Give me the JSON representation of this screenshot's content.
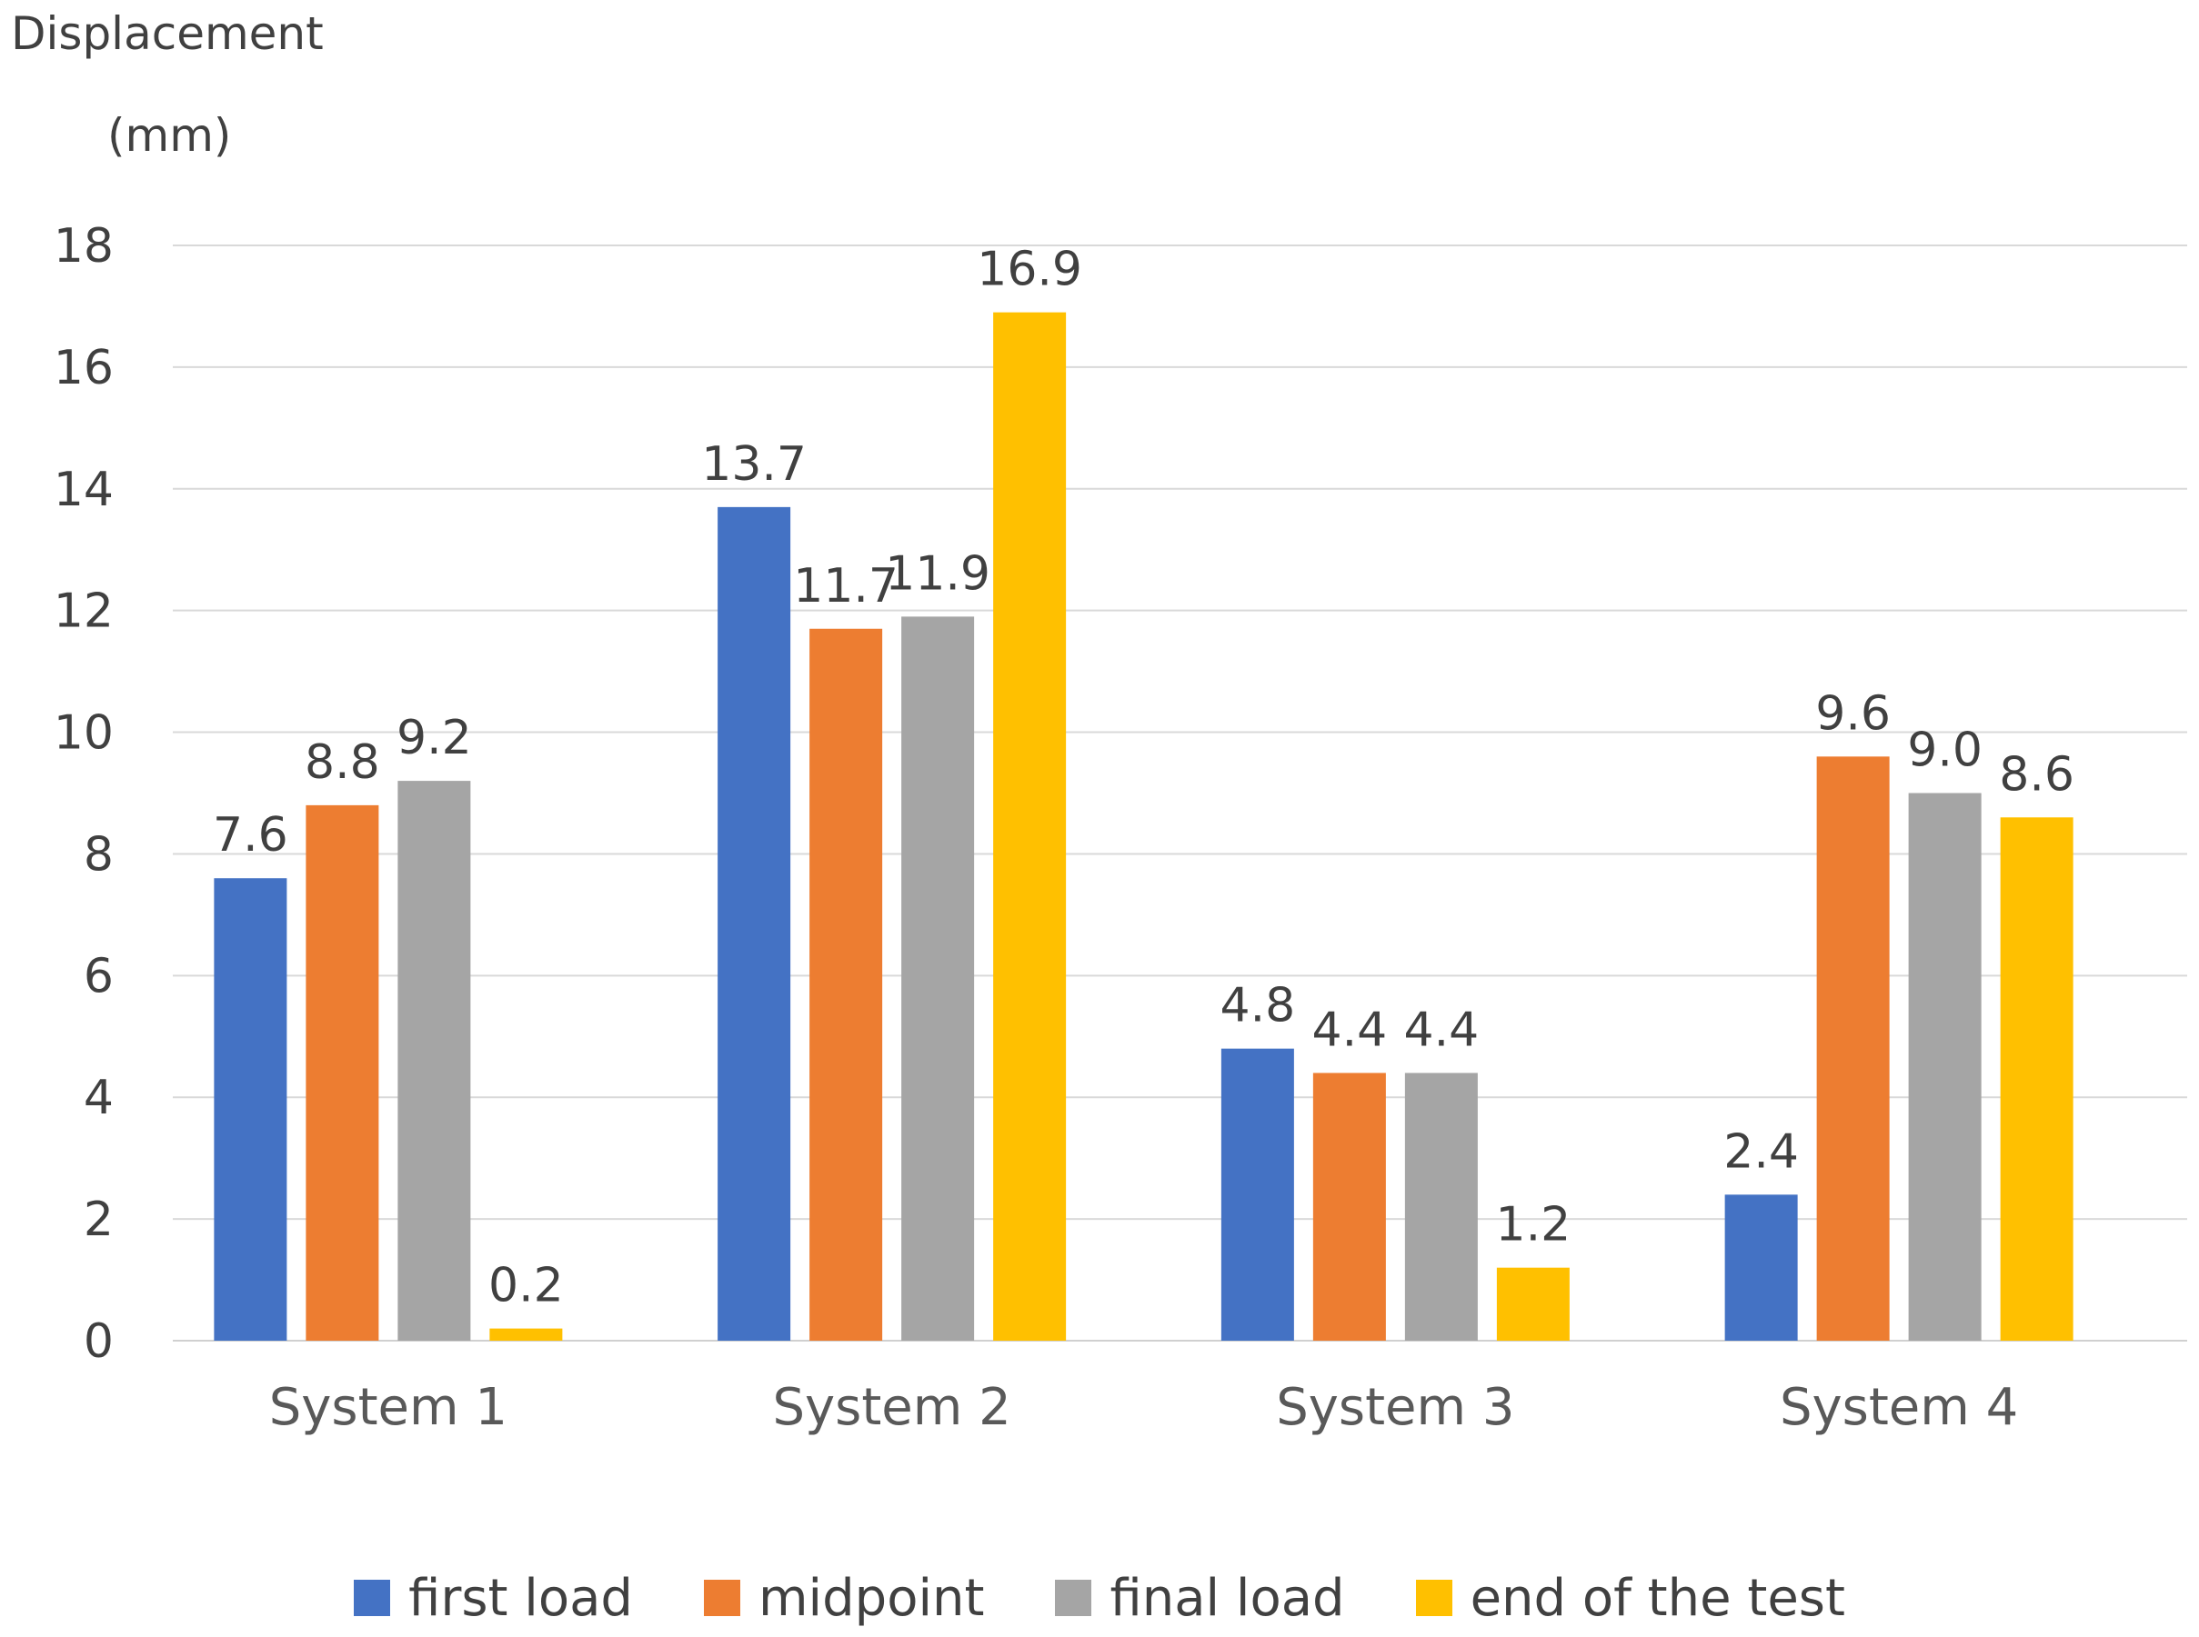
{
  "chart_data": {
    "type": "bar",
    "title": "",
    "xlabel": "",
    "ylabel": [
      "Displacement",
      "(mm)"
    ],
    "categories": [
      "System 1",
      "System 2",
      "System 3",
      "System 4"
    ],
    "series": [
      {
        "name": "first load",
        "color": "#4472C4",
        "values": [
          7.6,
          13.7,
          4.8,
          2.4
        ],
        "labels": [
          "7.6",
          "13.7",
          "4.8",
          "2.4"
        ]
      },
      {
        "name": "midpoint",
        "color": "#ED7D31",
        "values": [
          8.8,
          11.7,
          4.4,
          9.6
        ],
        "labels": [
          "8.8",
          "11.7",
          "4.4",
          "9.6"
        ]
      },
      {
        "name": "final load",
        "color": "#A5A5A5",
        "values": [
          9.2,
          11.9,
          4.4,
          9.0
        ],
        "labels": [
          "9.2",
          "11.9",
          "4.4",
          "9.0"
        ]
      },
      {
        "name": "end of the test",
        "color": "#FFC000",
        "values": [
          0.2,
          16.9,
          1.2,
          8.6
        ],
        "labels": [
          "0.2",
          "16.9",
          "1.2",
          "8.6"
        ]
      }
    ],
    "ylim": [
      0,
      18
    ],
    "yticks": [
      0,
      2,
      4,
      6,
      8,
      10,
      12,
      14,
      16,
      18
    ],
    "grid": true,
    "legend_position": "bottom"
  }
}
